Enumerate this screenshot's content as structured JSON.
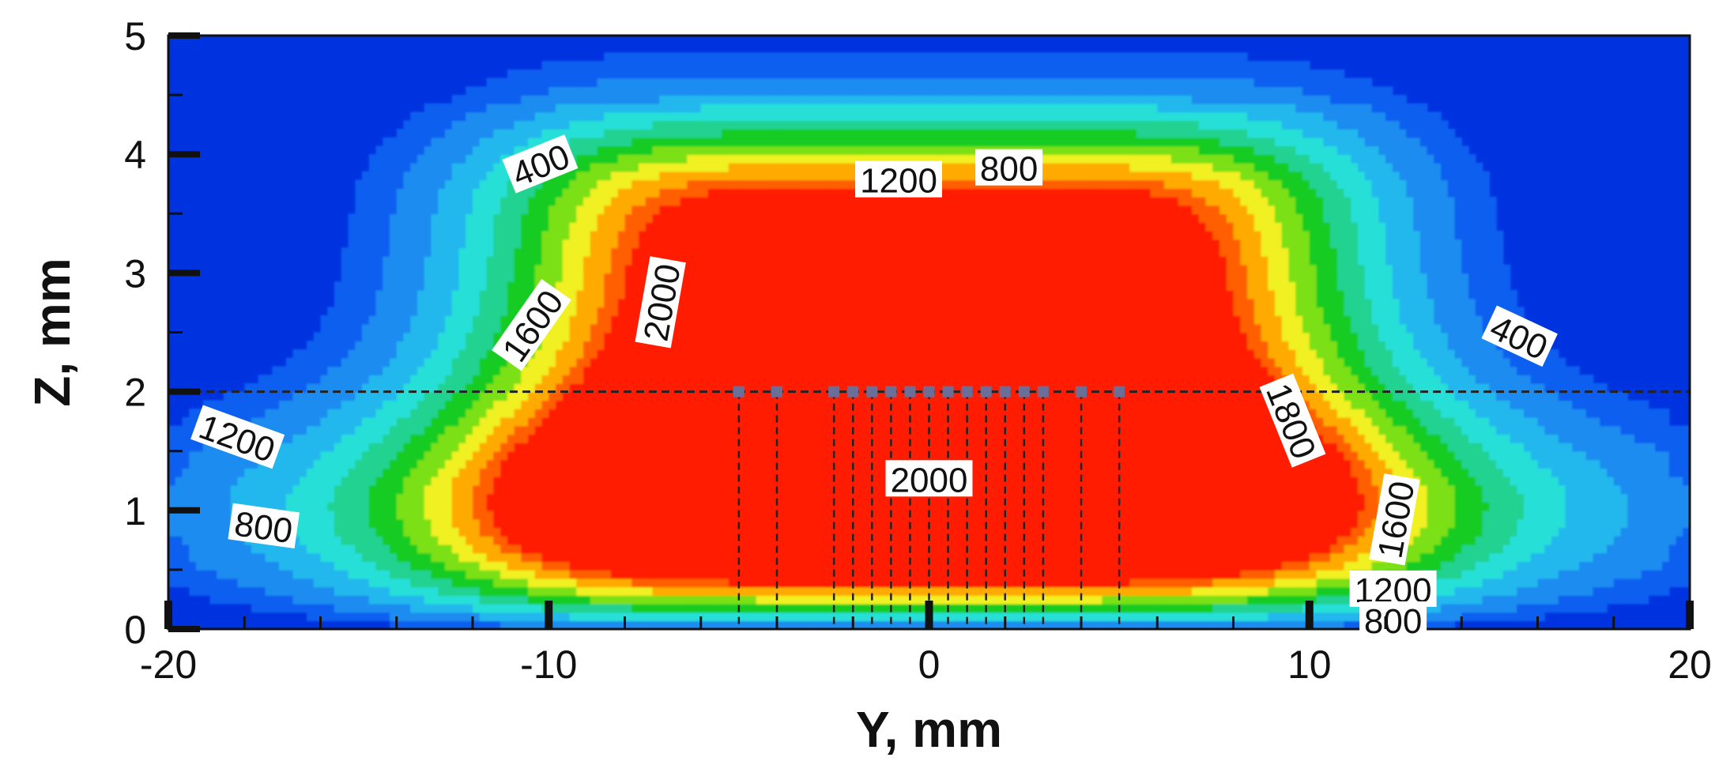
{
  "chart_data": {
    "type": "contour",
    "xlabel": "Y, mm",
    "ylabel": "Z, mm",
    "xlim": [
      -20,
      20
    ],
    "ylim": [
      0,
      5
    ],
    "x_ticks": [
      -20,
      -10,
      0,
      10,
      20
    ],
    "y_ticks": [
      0,
      1,
      2,
      3,
      4,
      5
    ],
    "x_tick_labels": [
      "-20",
      "-10",
      "0",
      "10",
      "20"
    ],
    "y_tick_labels": [
      "0",
      "1",
      "2",
      "3",
      "4",
      "5"
    ],
    "grid": false,
    "color_scale": [
      "#0033e0",
      "#0d5ff0",
      "#1e8cf0",
      "#22b8ee",
      "#28e0d8",
      "#20d290",
      "#18cc20",
      "#7ce014",
      "#f0f020",
      "#ffaa00",
      "#ff5e00",
      "#ff1a00"
    ],
    "contour_levels": [
      400,
      800,
      1200,
      1400,
      1600,
      1800,
      2000
    ],
    "contour_labels": [
      {
        "text": "400",
        "y": -10.2,
        "z": 3.9,
        "angle": -22
      },
      {
        "text": "800",
        "y": 2.1,
        "z": 3.87,
        "angle": 0
      },
      {
        "text": "1200",
        "y": -0.8,
        "z": 3.77,
        "angle": 0
      },
      {
        "text": "2000",
        "y": -7.0,
        "z": 2.75,
        "angle": -80
      },
      {
        "text": "1600",
        "y": -10.4,
        "z": 2.55,
        "angle": -55
      },
      {
        "text": "400",
        "y": 15.5,
        "z": 2.45,
        "angle": 25
      },
      {
        "text": "1800",
        "y": 9.5,
        "z": 1.75,
        "angle": 68
      },
      {
        "text": "1200",
        "y": -18.2,
        "z": 1.6,
        "angle": 20
      },
      {
        "text": "2000",
        "y": 0.0,
        "z": 1.25,
        "angle": 0
      },
      {
        "text": "1600",
        "y": 12.3,
        "z": 0.92,
        "angle": -80
      },
      {
        "text": "800",
        "y": -17.5,
        "z": 0.85,
        "angle": 8
      },
      {
        "text": "1200",
        "y": 12.2,
        "z": 0.32,
        "angle": 0
      },
      {
        "text": "800",
        "y": 12.2,
        "z": 0.06,
        "angle": 0
      }
    ],
    "annotations": {
      "reference_line_z": 2,
      "probe_points_y": [
        -5,
        -4,
        -2.5,
        -2,
        -1.5,
        -1,
        -0.5,
        0,
        0.5,
        1,
        1.5,
        2,
        2.5,
        3,
        4,
        5
      ]
    }
  }
}
